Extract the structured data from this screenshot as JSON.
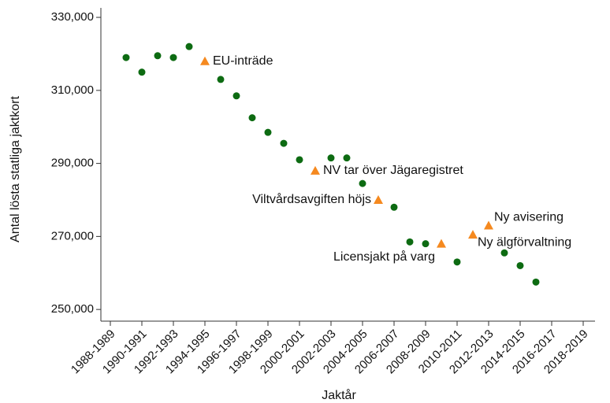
{
  "chart_data": {
    "type": "scatter",
    "x_label": "Jaktår",
    "y_label": "Antal lösta statliga jaktkort",
    "categories": [
      "1988-1989",
      null,
      "1990-1991",
      null,
      "1992-1993",
      null,
      "1994-1995",
      null,
      "1996-1997",
      null,
      "1998-1999",
      null,
      "2000-2001",
      null,
      "2002-2003",
      null,
      "2004-2005",
      null,
      "2006-2007",
      null,
      "2008-2009",
      null,
      "2010-2011",
      null,
      "2012-2013",
      null,
      "2014-2015",
      null,
      "2016-2017",
      null,
      "2018-2019"
    ],
    "series": [
      {
        "color": "#0d6b12",
        "marker": "circle",
        "values": [
          null,
          319000,
          315000,
          319500,
          319000,
          322000,
          null,
          313000,
          308500,
          302500,
          298500,
          295500,
          291000,
          null,
          291500,
          291500,
          284500,
          null,
          278000,
          268500,
          268000,
          null,
          263000,
          null,
          null,
          265500,
          262000,
          257500,
          null,
          null,
          null
        ]
      },
      {
        "color": "#f5891f",
        "marker": "triangle",
        "values": [
          null,
          null,
          null,
          null,
          null,
          null,
          318000,
          null,
          null,
          null,
          null,
          null,
          null,
          288000,
          null,
          null,
          null,
          280000,
          null,
          null,
          null,
          268000,
          null,
          270500,
          273000,
          null,
          null,
          null,
          null,
          null,
          null
        ]
      }
    ],
    "annotations": [
      "EU-inträde",
      "NV tar över Jägaregistret",
      "Viltvårdsavgiften höjs",
      "Licensjakt på varg",
      "Ny älgförvaltning",
      "Ny avisering"
    ],
    "ylim": [
      246800,
      332600
    ],
    "yticks": [
      {
        "value": 250000,
        "label": "250,000"
      },
      {
        "value": 270000,
        "label": "270,000"
      },
      {
        "value": 290000,
        "label": "290,000"
      },
      {
        "value": 310000,
        "label": "310,000"
      },
      {
        "value": 330000,
        "label": "330,000"
      }
    ],
    "grid": false
  }
}
